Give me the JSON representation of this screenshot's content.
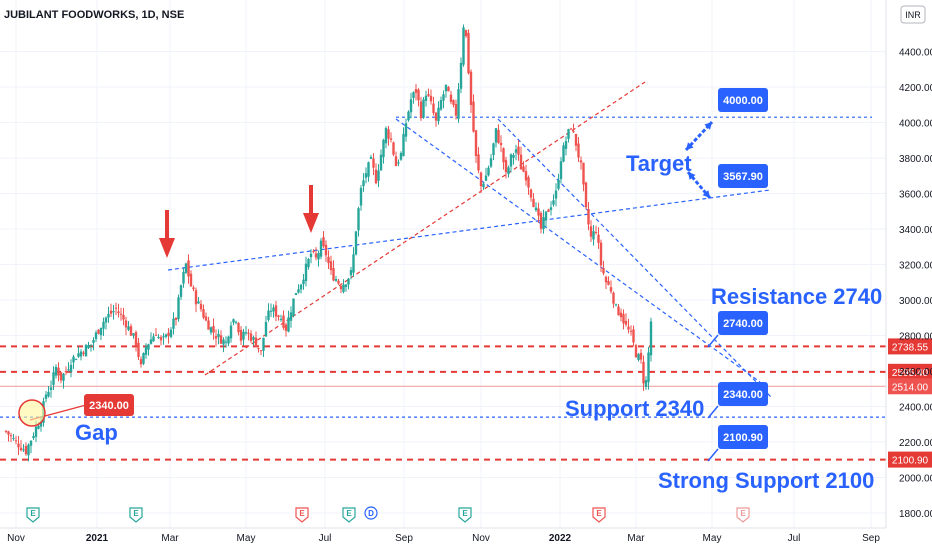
{
  "header": {
    "title": "JUBILANT FOODWORKS, 1D, NSE",
    "currency": "INR"
  },
  "colors": {
    "up": "#26a69a",
    "down": "#ef5350",
    "annotation": "#2962ff",
    "level": "#e53935",
    "support": "#2962ff",
    "callout": "#2962ff",
    "label_red": "#e53935",
    "arrow": "#e53935",
    "trend_red": "#e53935"
  },
  "chart_data": {
    "type": "candlestick",
    "title": "JUBILANT FOODWORKS, 1D, NSE",
    "x_ticks": [
      "Nov",
      "2021",
      "Mar",
      "May",
      "Jul",
      "Sep",
      "Nov",
      "2022",
      "Mar",
      "May",
      "Jul",
      "Sep"
    ],
    "y_ticks": [
      1800,
      2000,
      2200,
      2400,
      2600,
      2800,
      3000,
      3200,
      3400,
      3600,
      3800,
      4000,
      4200,
      4400
    ],
    "ylim": [
      1750,
      4650
    ],
    "close_path": [
      [
        0,
        2260
      ],
      [
        2,
        2200
      ],
      [
        4,
        2150
      ],
      [
        6,
        2280
      ],
      [
        7,
        2340
      ],
      [
        8,
        2470
      ],
      [
        9,
        2520
      ],
      [
        10,
        2620
      ],
      [
        11,
        2560
      ],
      [
        12,
        2600
      ],
      [
        13,
        2660
      ],
      [
        15,
        2710
      ],
      [
        17,
        2750
      ],
      [
        19,
        2860
      ],
      [
        20,
        2900
      ],
      [
        22,
        2950
      ],
      [
        24,
        2870
      ],
      [
        26,
        2760
      ],
      [
        27,
        2620
      ],
      [
        28,
        2740
      ],
      [
        30,
        2820
      ],
      [
        31,
        2760
      ],
      [
        32,
        2790
      ],
      [
        34,
        2900
      ],
      [
        35,
        3080
      ],
      [
        36,
        3200
      ],
      [
        37,
        3080
      ],
      [
        38,
        3000
      ],
      [
        39,
        2950
      ],
      [
        40,
        2880
      ],
      [
        42,
        2800
      ],
      [
        44,
        2760
      ],
      [
        45,
        2880
      ],
      [
        46,
        2900
      ],
      [
        47,
        2780
      ],
      [
        48,
        2820
      ],
      [
        50,
        2760
      ],
      [
        51,
        2700
      ],
      [
        52,
        2880
      ],
      [
        53,
        2950
      ],
      [
        55,
        2900
      ],
      [
        56,
        2840
      ],
      [
        57,
        2950
      ],
      [
        58,
        3050
      ],
      [
        59,
        3100
      ],
      [
        60,
        3180
      ],
      [
        61,
        3260
      ],
      [
        62,
        3230
      ],
      [
        63,
        3310
      ],
      [
        64,
        3260
      ],
      [
        65,
        3150
      ],
      [
        66,
        3120
      ],
      [
        67,
        3080
      ],
      [
        68,
        3110
      ],
      [
        69,
        3150
      ],
      [
        69.5,
        3250
      ],
      [
        70,
        3400
      ],
      [
        71,
        3620
      ],
      [
        72,
        3720
      ],
      [
        73,
        3780
      ],
      [
        74,
        3680
      ],
      [
        75,
        3820
      ],
      [
        76,
        3960
      ],
      [
        77,
        3900
      ],
      [
        78,
        3760
      ],
      [
        79,
        3820
      ],
      [
        80,
        4000
      ],
      [
        81,
        4130
      ],
      [
        82,
        4180
      ],
      [
        83,
        4050
      ],
      [
        84,
        4170
      ],
      [
        85,
        4100
      ],
      [
        86,
        4000
      ],
      [
        87,
        4120
      ],
      [
        88,
        4200
      ],
      [
        89,
        4100
      ],
      [
        90,
        4050
      ],
      [
        91,
        4350
      ],
      [
        91.5,
        4550
      ],
      [
        92,
        4480
      ],
      [
        93,
        4100
      ],
      [
        94,
        3800
      ],
      [
        95,
        3640
      ],
      [
        96,
        3700
      ],
      [
        97,
        3800
      ],
      [
        98,
        3950
      ],
      [
        99,
        3860
      ],
      [
        100,
        3700
      ],
      [
        101,
        3800
      ],
      [
        102,
        3850
      ],
      [
        103,
        3750
      ],
      [
        104,
        3700
      ],
      [
        105,
        3600
      ],
      [
        106,
        3500
      ],
      [
        107,
        3400
      ],
      [
        108,
        3480
      ],
      [
        109,
        3540
      ],
      [
        110,
        3600
      ],
      [
        111,
        3800
      ],
      [
        112,
        3900
      ],
      [
        113,
        3980
      ],
      [
        114,
        3880
      ],
      [
        115,
        3750
      ],
      [
        116,
        3500
      ],
      [
        117,
        3350
      ],
      [
        118,
        3400
      ],
      [
        119,
        3200
      ],
      [
        120,
        3100
      ],
      [
        121,
        3060
      ],
      [
        122,
        2950
      ],
      [
        123,
        2920
      ],
      [
        124,
        2850
      ],
      [
        125,
        2800
      ],
      [
        126,
        2700
      ],
      [
        127,
        2650
      ],
      [
        127.5,
        2550
      ],
      [
        128,
        2540
      ],
      [
        128.5,
        2700
      ],
      [
        129,
        2880
      ]
    ],
    "annotations": {
      "gap_label": "Gap",
      "gap_price": "2340.00",
      "target_label": "Target",
      "target_upper_price": "4000.00",
      "target_lower_price": "3567.90",
      "resistance_label": "Resistance  2740",
      "resistance_price": "2740.00",
      "support_label": "Support  2340",
      "support_price": "2340.00",
      "strong_support_label": "Strong Support  2100",
      "strong_support_price": "2100.90"
    },
    "levels": [
      {
        "value": 2738.55,
        "label": "2738.55",
        "style": "red-dashed"
      },
      {
        "value": 2595.4,
        "label": "2595.40",
        "style": "red-dashed"
      },
      {
        "value": 2514.0,
        "label": "2514.00",
        "style": "last-price"
      },
      {
        "value": 2340.0,
        "label": "",
        "style": "blue-dashed"
      },
      {
        "value": 2100.9,
        "label": "2100.90",
        "style": "red-dashed"
      },
      {
        "value": 4030.0,
        "label": "",
        "style": "blue-dashed"
      }
    ],
    "event_markers": [
      "E",
      "E",
      "E",
      "E",
      "D",
      "E",
      "E",
      "E"
    ],
    "grid": true
  }
}
